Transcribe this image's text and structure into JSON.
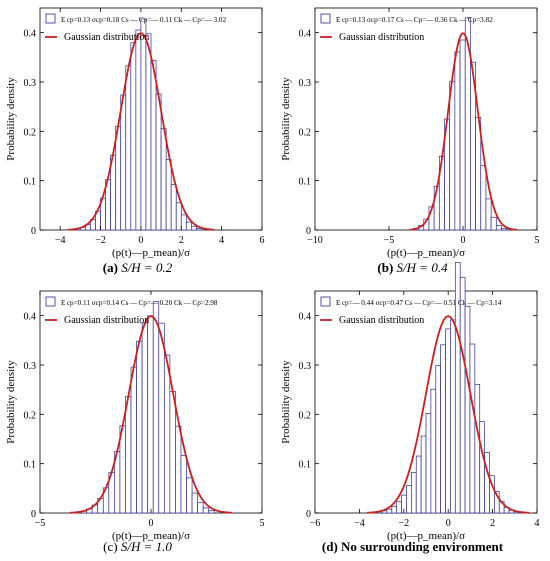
{
  "panels": [
    {
      "caption": {
        "letter": "(a)",
        "text": " S/H = 0.2",
        "bold_letter": true
      },
      "legend": {
        "stats": "E cp=0.13 σcp=0.18 Cs — Cp=— 0.11 Ck — Cp=— 3.02",
        "gaussian": "Gaussian distribution"
      }
    },
    {
      "caption": {
        "letter": "(b)",
        "text": " S/H = 0.4",
        "bold_letter": true
      },
      "legend": {
        "stats": "E cp=0.13 σcp=0.17 Cs — Cp=— 0.36 Ck — Cp=3.82",
        "gaussian": "Gaussian distribution"
      }
    },
    {
      "caption": {
        "letter": "(c)",
        "text": " S/H = 1.0",
        "bold_letter": false
      },
      "legend": {
        "stats": "E cp=0.11 σcp=0.14 Cs — Cp=— 0.20 Ck — Cp=2.98",
        "gaussian": "Gaussian distribution"
      }
    },
    {
      "caption": {
        "letter": "(d)",
        "text": " No surrounding environment",
        "bold_letter": true
      },
      "legend": {
        "stats": "E cp=— 0.44 σcp=0.47 Cs — Cp=— 0.51 Ck — Cp=3.14",
        "gaussian": "Gaussian distribution"
      }
    }
  ],
  "colors": {
    "bars": "#2b2b8f",
    "gaussian": "#cc1f1f",
    "axis": "#000000"
  },
  "chart_data": [
    {
      "type": "bar",
      "ylabel": "Probability density",
      "xlabel": "(p(t)—p_mean)/σ",
      "xlim": [
        -5,
        6
      ],
      "ylim": [
        0,
        0.45
      ],
      "xticks": [
        -4,
        -2,
        0,
        2,
        4,
        6
      ],
      "yticks": [
        0,
        0.1,
        0.2,
        0.3,
        0.4
      ],
      "bin_width": 0.25,
      "hist": {
        "mean": 0,
        "sd": 1,
        "skew": -0.11,
        "range": [
          -4.5,
          4.0
        ]
      },
      "series": [
        {
          "name": "Gaussian distribution",
          "mean": 0,
          "sd": 1
        }
      ]
    },
    {
      "type": "bar",
      "ylabel": "Probability density",
      "xlabel": "(p(t)—p_mean)/σ",
      "xlim": [
        -10,
        5
      ],
      "ylim": [
        0,
        0.45
      ],
      "xticks": [
        -10,
        -5,
        0,
        5
      ],
      "yticks": [
        0,
        0.1,
        0.2,
        0.3,
        0.4
      ],
      "bin_width": 0.35,
      "hist": {
        "mean": 0,
        "sd": 1,
        "skew": -0.36,
        "range": [
          -8.6,
          4.2
        ]
      },
      "series": [
        {
          "name": "Gaussian distribution",
          "mean": 0,
          "sd": 1
        }
      ]
    },
    {
      "type": "bar",
      "ylabel": "Probability density",
      "xlabel": "(p(t)—p_mean)/σ",
      "xlim": [
        -5,
        5
      ],
      "ylim": [
        0,
        0.45
      ],
      "xticks": [
        -5,
        0,
        5
      ],
      "yticks": [
        0,
        0.1,
        0.2,
        0.3,
        0.4
      ],
      "bin_width": 0.25,
      "hist": {
        "mean": 0,
        "sd": 1,
        "skew": -0.2,
        "range": [
          -4.4,
          4.2
        ]
      },
      "series": [
        {
          "name": "Gaussian distribution",
          "mean": 0,
          "sd": 1
        }
      ]
    },
    {
      "type": "bar",
      "ylabel": "Probability density",
      "xlabel": "(p(t)—p_mean)/σ",
      "xlim": [
        -6,
        4
      ],
      "ylim": [
        0,
        0.45
      ],
      "xticks": [
        -6,
        -4,
        -2,
        0,
        2,
        4
      ],
      "yticks": [
        0,
        0.1,
        0.2,
        0.3,
        0.4
      ],
      "bin_width": 0.22,
      "hist": {
        "mean": 0,
        "sd": 1,
        "skew": -0.51,
        "peak_shift": 0.35,
        "range": [
          -4.3,
          3.4
        ]
      },
      "series": [
        {
          "name": "Gaussian distribution",
          "mean": 0,
          "sd": 1
        }
      ]
    }
  ]
}
